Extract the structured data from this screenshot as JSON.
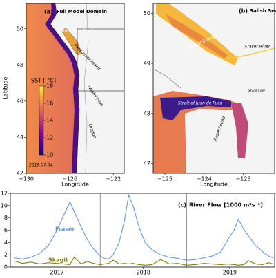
{
  "chart_data": [
    {
      "type": "map",
      "panel_label": "(a)",
      "title": "Full Model Domain",
      "xlabel": "Longitude",
      "ylabel": "Latitude",
      "xlim": [
        -130,
        -121
      ],
      "ylim": [
        42,
        51.4
      ],
      "xticks": [
        {
          "value": -130,
          "label": "−130"
        },
        {
          "value": -126,
          "label": "−126"
        },
        {
          "value": -122,
          "label": "−122"
        }
      ],
      "yticks": [
        42,
        44,
        46,
        48,
        50
      ],
      "colorbar": {
        "label": "SST [ °C]",
        "lim": [
          10,
          18
        ],
        "ticks": [
          10,
          12,
          14,
          16,
          18
        ]
      },
      "date": "2019.07.04",
      "annotations": [
        "Johnstone Strait",
        "Vancouver Island",
        "Washington",
        "Oregon"
      ]
    },
    {
      "type": "map",
      "panel_label": "(b)",
      "title": "Salish Sea",
      "xlabel": "Longitude",
      "xlim": [
        -125.3,
        -122.2
      ],
      "ylim": [
        46.8,
        50.2
      ],
      "xticks": [
        {
          "value": -125,
          "label": "−125"
        },
        {
          "value": -124,
          "label": "−124"
        },
        {
          "value": -123,
          "label": "−123"
        }
      ],
      "yticks": [
        47,
        48,
        49,
        50
      ],
      "annotations": [
        "Strait of Georgia",
        "Fraser River",
        "Strait of Juan de Fuca",
        "Puget Sound",
        "Skagit River"
      ]
    },
    {
      "type": "line",
      "panel_label": "(c)",
      "title": "River Flow [1000 m³s⁻¹]",
      "x": [
        2017.0,
        2017.1,
        2017.2,
        2017.3,
        2017.4,
        2017.5,
        2017.58,
        2017.65,
        2017.7,
        2017.78,
        2017.85,
        2017.92,
        2018.0,
        2018.05,
        2018.1,
        2018.15,
        2018.22,
        2018.28,
        2018.33,
        2018.38,
        2018.45,
        2018.52,
        2018.6,
        2018.7,
        2018.8,
        2018.9,
        2019.0,
        2019.1,
        2019.2,
        2019.3,
        2019.4,
        2019.48,
        2019.55,
        2019.6,
        2019.66,
        2019.72,
        2019.8,
        2019.88,
        2019.95,
        2020.0
      ],
      "series": [
        {
          "name": "Fraser",
          "color": "#6495ed",
          "values": [
            1.5,
            1.3,
            1.6,
            2.2,
            3.5,
            6.0,
            8.5,
            10.6,
            9.0,
            6.5,
            4.5,
            3.0,
            1.8,
            1.4,
            1.3,
            2.0,
            4.0,
            7.5,
            11.7,
            10.0,
            6.5,
            4.0,
            2.8,
            2.0,
            1.6,
            1.4,
            1.1,
            1.2,
            1.5,
            1.8,
            2.5,
            4.5,
            6.0,
            7.8,
            6.2,
            5.0,
            3.5,
            2.5,
            1.8,
            1.5
          ]
        },
        {
          "name": "Skagit",
          "color": "#808000",
          "values": [
            1.0,
            0.6,
            0.8,
            0.5,
            0.7,
            0.6,
            0.5,
            0.4,
            1.6,
            0.5,
            0.9,
            0.6,
            0.4,
            0.5,
            0.6,
            1.1,
            0.5,
            0.6,
            0.5,
            0.6,
            0.4,
            0.3,
            0.4,
            1.2,
            0.5,
            0.6,
            0.3,
            0.4,
            0.6,
            0.5,
            0.4,
            0.5,
            0.4,
            0.3,
            0.4,
            1.0,
            0.5,
            0.4,
            0.7,
            0.5
          ]
        }
      ],
      "xlim": [
        2016.96,
        2020.02
      ],
      "ylim": [
        0,
        12
      ],
      "xticks": [
        {
          "value": 2017.5,
          "label": "2017"
        },
        {
          "value": 2018.5,
          "label": "2018"
        },
        {
          "value": 2019.5,
          "label": "2019"
        }
      ],
      "yticks": [
        0,
        2,
        4,
        6,
        8,
        10,
        12
      ],
      "separators": [
        2018,
        2019
      ]
    }
  ]
}
